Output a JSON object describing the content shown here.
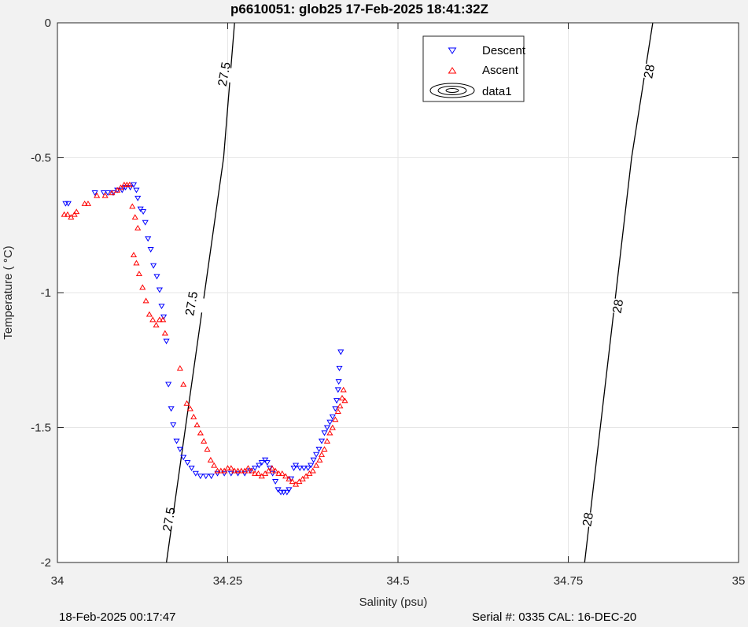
{
  "chart_data": {
    "type": "scatter",
    "title": "p6610051: glob25 17-Feb-2025 18:41:32Z",
    "xlabel": "Salinity (psu)",
    "ylabel": "Temperature (   °C)",
    "xlim": [
      34,
      35
    ],
    "ylim": [
      -2,
      0
    ],
    "x_ticks": [
      34,
      34.25,
      34.5,
      34.75,
      35
    ],
    "x_tick_labels": [
      "34",
      "34.25",
      "34.5",
      "34.75",
      "35"
    ],
    "y_ticks": [
      0,
      -0.5,
      -1,
      -1.5,
      -2
    ],
    "y_tick_labels": [
      "0",
      "-0.5",
      "-1",
      "-1.5",
      "-2"
    ],
    "grid": true,
    "legend_position": "top-right",
    "legend": [
      "Descent",
      "Ascent",
      "data1"
    ],
    "footer_left": "18-Feb-2025 00:17:47",
    "footer_right": "Serial #: 0335  CAL: 16-DEC-20",
    "contours": [
      {
        "level": "27.5",
        "points": [
          [
            34.16,
            -2.0
          ],
          [
            34.188,
            -1.5
          ],
          [
            34.216,
            -1.0
          ],
          [
            34.244,
            -0.5
          ],
          [
            34.26,
            0.0
          ]
        ]
      },
      {
        "level": "28",
        "points": [
          [
            34.774,
            -2.0
          ],
          [
            34.797,
            -1.5
          ],
          [
            34.82,
            -1.0
          ],
          [
            34.843,
            -0.5
          ],
          [
            34.874,
            0.0
          ]
        ]
      }
    ],
    "contour_labels": [
      {
        "text": "27.5",
        "x": 34.244,
        "y": -0.19
      },
      {
        "text": "27.5",
        "x": 34.196,
        "y": -1.04
      },
      {
        "text": "27.5",
        "x": 34.163,
        "y": -1.84
      },
      {
        "text": "28",
        "x": 34.868,
        "y": -0.18
      },
      {
        "text": "28",
        "x": 34.822,
        "y": -1.05
      },
      {
        "text": "28",
        "x": 34.778,
        "y": -1.84
      }
    ],
    "series": [
      {
        "name": "Descent",
        "color": "#0000ff",
        "marker": "triangle-down",
        "points": [
          [
            34.012,
            -0.67
          ],
          [
            34.016,
            -0.67
          ],
          [
            34.055,
            -0.63
          ],
          [
            34.068,
            -0.63
          ],
          [
            34.074,
            -0.63
          ],
          [
            34.082,
            -0.63
          ],
          [
            34.088,
            -0.62
          ],
          [
            34.095,
            -0.62
          ],
          [
            34.1,
            -0.61
          ],
          [
            34.107,
            -0.61
          ],
          [
            34.112,
            -0.6
          ],
          [
            34.116,
            -0.62
          ],
          [
            34.118,
            -0.65
          ],
          [
            34.122,
            -0.69
          ],
          [
            34.126,
            -0.7
          ],
          [
            34.129,
            -0.74
          ],
          [
            34.133,
            -0.8
          ],
          [
            34.137,
            -0.84
          ],
          [
            34.141,
            -0.9
          ],
          [
            34.146,
            -0.94
          ],
          [
            34.15,
            -0.99
          ],
          [
            34.153,
            -1.05
          ],
          [
            34.156,
            -1.09
          ],
          [
            34.16,
            -1.18
          ],
          [
            34.163,
            -1.34
          ],
          [
            34.167,
            -1.43
          ],
          [
            34.17,
            -1.49
          ],
          [
            34.175,
            -1.55
          ],
          [
            34.18,
            -1.58
          ],
          [
            34.185,
            -1.61
          ],
          [
            34.191,
            -1.63
          ],
          [
            34.197,
            -1.65
          ],
          [
            34.203,
            -1.67
          ],
          [
            34.21,
            -1.68
          ],
          [
            34.218,
            -1.68
          ],
          [
            34.226,
            -1.68
          ],
          [
            34.235,
            -1.67
          ],
          [
            34.245,
            -1.67
          ],
          [
            34.255,
            -1.67
          ],
          [
            34.265,
            -1.67
          ],
          [
            34.275,
            -1.67
          ],
          [
            34.283,
            -1.66
          ],
          [
            34.29,
            -1.65
          ],
          [
            34.296,
            -1.64
          ],
          [
            34.3,
            -1.63
          ],
          [
            34.305,
            -1.62
          ],
          [
            34.308,
            -1.63
          ],
          [
            34.312,
            -1.65
          ],
          [
            34.316,
            -1.67
          ],
          [
            34.32,
            -1.7
          ],
          [
            34.324,
            -1.73
          ],
          [
            34.328,
            -1.74
          ],
          [
            34.332,
            -1.74
          ],
          [
            34.337,
            -1.74
          ],
          [
            34.34,
            -1.73
          ],
          [
            34.343,
            -1.69
          ],
          [
            34.347,
            -1.65
          ],
          [
            34.35,
            -1.64
          ],
          [
            34.356,
            -1.65
          ],
          [
            34.362,
            -1.65
          ],
          [
            34.368,
            -1.65
          ],
          [
            34.372,
            -1.64
          ],
          [
            34.376,
            -1.62
          ],
          [
            34.38,
            -1.6
          ],
          [
            34.384,
            -1.58
          ],
          [
            34.388,
            -1.55
          ],
          [
            34.392,
            -1.52
          ],
          [
            34.396,
            -1.5
          ],
          [
            34.4,
            -1.48
          ],
          [
            34.404,
            -1.46
          ],
          [
            34.408,
            -1.43
          ],
          [
            34.41,
            -1.4
          ],
          [
            34.412,
            -1.36
          ],
          [
            34.413,
            -1.33
          ],
          [
            34.414,
            -1.28
          ],
          [
            34.416,
            -1.22
          ]
        ]
      },
      {
        "name": "Ascent",
        "color": "#ff0000",
        "marker": "triangle-up",
        "points": [
          [
            34.01,
            -0.71
          ],
          [
            34.015,
            -0.71
          ],
          [
            34.02,
            -0.72
          ],
          [
            34.025,
            -0.71
          ],
          [
            34.028,
            -0.7
          ],
          [
            34.04,
            -0.67
          ],
          [
            34.045,
            -0.67
          ],
          [
            34.058,
            -0.64
          ],
          [
            34.07,
            -0.64
          ],
          [
            34.08,
            -0.63
          ],
          [
            34.088,
            -0.62
          ],
          [
            34.093,
            -0.61
          ],
          [
            34.098,
            -0.6
          ],
          [
            34.102,
            -0.6
          ],
          [
            34.106,
            -0.6
          ],
          [
            34.11,
            -0.68
          ],
          [
            34.114,
            -0.72
          ],
          [
            34.118,
            -0.76
          ],
          [
            34.112,
            -0.86
          ],
          [
            34.116,
            -0.89
          ],
          [
            34.12,
            -0.93
          ],
          [
            34.125,
            -0.98
          ],
          [
            34.13,
            -1.03
          ],
          [
            34.135,
            -1.08
          ],
          [
            34.14,
            -1.1
          ],
          [
            34.145,
            -1.12
          ],
          [
            34.15,
            -1.1
          ],
          [
            34.155,
            -1.1
          ],
          [
            34.158,
            -1.15
          ],
          [
            34.18,
            -1.28
          ],
          [
            34.185,
            -1.34
          ],
          [
            34.19,
            -1.41
          ],
          [
            34.195,
            -1.43
          ],
          [
            34.2,
            -1.46
          ],
          [
            34.205,
            -1.49
          ],
          [
            34.21,
            -1.52
          ],
          [
            34.215,
            -1.55
          ],
          [
            34.22,
            -1.58
          ],
          [
            34.225,
            -1.62
          ],
          [
            34.23,
            -1.64
          ],
          [
            34.235,
            -1.66
          ],
          [
            34.24,
            -1.66
          ],
          [
            34.245,
            -1.66
          ],
          [
            34.25,
            -1.65
          ],
          [
            34.255,
            -1.65
          ],
          [
            34.26,
            -1.66
          ],
          [
            34.265,
            -1.66
          ],
          [
            34.27,
            -1.66
          ],
          [
            34.275,
            -1.66
          ],
          [
            34.28,
            -1.65
          ],
          [
            34.285,
            -1.66
          ],
          [
            34.29,
            -1.67
          ],
          [
            34.295,
            -1.67
          ],
          [
            34.3,
            -1.68
          ],
          [
            34.305,
            -1.67
          ],
          [
            34.31,
            -1.66
          ],
          [
            34.315,
            -1.65
          ],
          [
            34.32,
            -1.66
          ],
          [
            34.325,
            -1.67
          ],
          [
            34.33,
            -1.67
          ],
          [
            34.335,
            -1.68
          ],
          [
            34.34,
            -1.69
          ],
          [
            34.345,
            -1.7
          ],
          [
            34.35,
            -1.71
          ],
          [
            34.355,
            -1.7
          ],
          [
            34.36,
            -1.69
          ],
          [
            34.365,
            -1.68
          ],
          [
            34.37,
            -1.67
          ],
          [
            34.375,
            -1.66
          ],
          [
            34.38,
            -1.64
          ],
          [
            34.385,
            -1.62
          ],
          [
            34.388,
            -1.6
          ],
          [
            34.392,
            -1.58
          ],
          [
            34.396,
            -1.55
          ],
          [
            34.4,
            -1.52
          ],
          [
            34.404,
            -1.5
          ],
          [
            34.408,
            -1.47
          ],
          [
            34.412,
            -1.44
          ],
          [
            34.415,
            -1.42
          ],
          [
            34.418,
            -1.39
          ],
          [
            34.42,
            -1.36
          ],
          [
            34.422,
            -1.4
          ]
        ]
      }
    ]
  }
}
